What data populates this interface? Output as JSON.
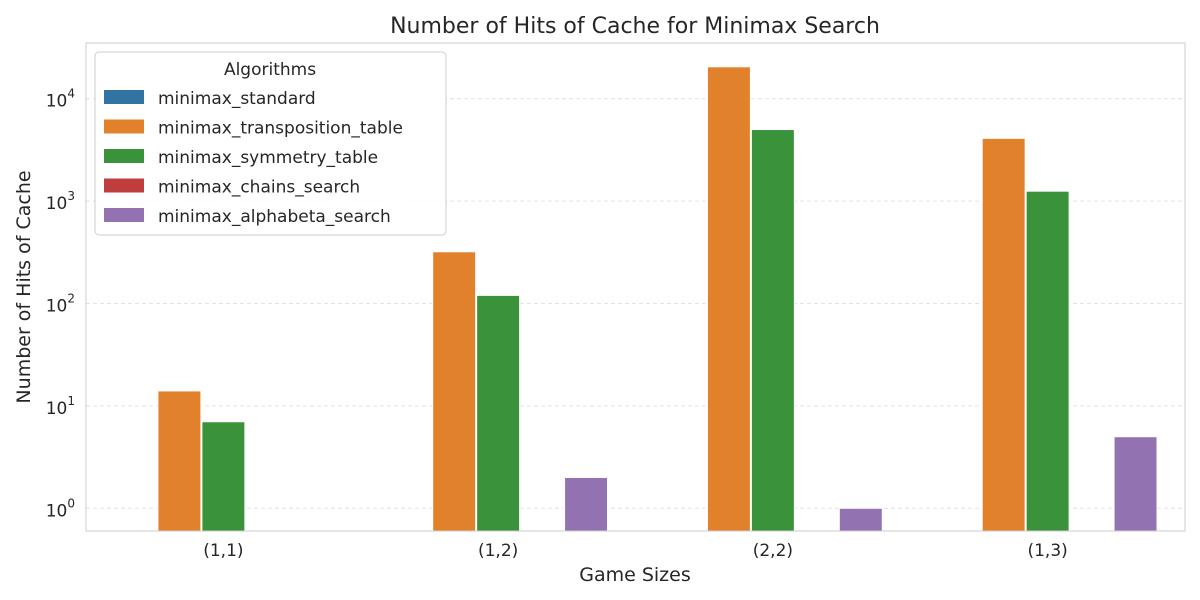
{
  "chart_data": {
    "type": "bar",
    "title": "Number of Hits of Cache for Minimax Search",
    "xlabel": "Game Sizes",
    "ylabel": "Number of Hits of Cache",
    "yscale": "log",
    "ylim": [
      0.6,
      35000
    ],
    "grid": "horizontal dashed",
    "legend_title": "Algorithms",
    "legend_position": "top-left",
    "categories": [
      "(1,1)",
      "(1,2)",
      "(2,2)",
      "(1,3)"
    ],
    "y_ticks": [
      {
        "value": 1,
        "base": "10",
        "exp": "0"
      },
      {
        "value": 10,
        "base": "10",
        "exp": "1"
      },
      {
        "value": 100,
        "base": "10",
        "exp": "2"
      },
      {
        "value": 1000,
        "base": "10",
        "exp": "3"
      },
      {
        "value": 10000,
        "base": "10",
        "exp": "4"
      }
    ],
    "series": [
      {
        "name": "minimax_standard",
        "color": "#3274a1",
        "values": [
          null,
          null,
          null,
          null
        ]
      },
      {
        "name": "minimax_transposition_table",
        "color": "#e1812c",
        "values": [
          14,
          320,
          20500,
          4100
        ]
      },
      {
        "name": "minimax_symmetry_table",
        "color": "#3a923a",
        "values": [
          7,
          120,
          5000,
          1250
        ]
      },
      {
        "name": "minimax_chains_search",
        "color": "#c03d3e",
        "values": [
          null,
          null,
          null,
          null
        ]
      },
      {
        "name": "minimax_alphabeta_search",
        "color": "#9372b2",
        "values": [
          null,
          2,
          1,
          5
        ]
      }
    ]
  }
}
